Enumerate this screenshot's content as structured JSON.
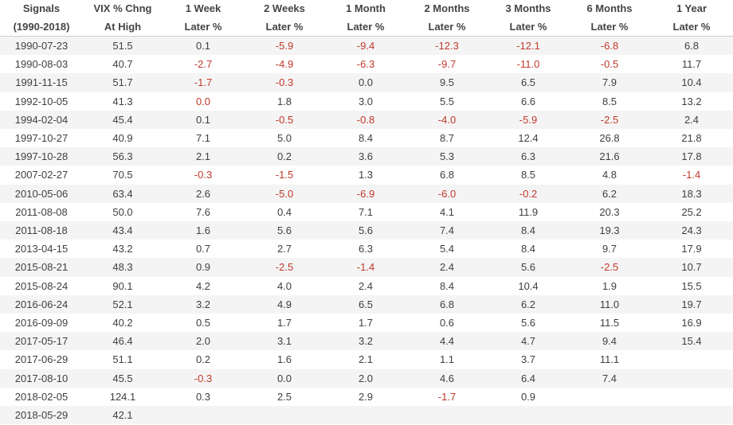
{
  "header": {
    "row1": [
      "Signals",
      "VIX % Chng",
      "1 Week",
      "2 Weeks",
      "1 Month",
      "2 Months",
      "3 Months",
      "6 Months",
      "1 Year"
    ],
    "row2": [
      "(1990-2018)",
      "At High",
      "Later %",
      "Later %",
      "Later %",
      "Later %",
      "Later %",
      "Later %",
      "Later %"
    ]
  },
  "colors": {
    "negative": "#c0392b",
    "text": "#404040",
    "stripe": "#f4f4f4"
  },
  "rows": [
    [
      "1990-07-23",
      "51.5",
      "0.1",
      "-5.9",
      "-9.4",
      "-12.3",
      "-12.1",
      "-6.8",
      "6.8"
    ],
    [
      "1990-08-03",
      "40.7",
      "-2.7",
      "-4.9",
      "-6.3",
      "-9.7",
      "-11.0",
      "-0.5",
      "11.7"
    ],
    [
      "1991-11-15",
      "51.7",
      "-1.7",
      "-0.3",
      "0.0",
      "9.5",
      "6.5",
      "7.9",
      "10.4"
    ],
    [
      "1992-10-05",
      "41.3",
      "0.0",
      "1.8",
      "3.0",
      "5.5",
      "6.6",
      "8.5",
      "13.2"
    ],
    [
      "1994-02-04",
      "45.4",
      "0.1",
      "-0.5",
      "-0.8",
      "-4.0",
      "-5.9",
      "-2.5",
      "2.4"
    ],
    [
      "1997-10-27",
      "40.9",
      "7.1",
      "5.0",
      "8.4",
      "8.7",
      "12.4",
      "26.8",
      "21.8"
    ],
    [
      "1997-10-28",
      "56.3",
      "2.1",
      "0.2",
      "3.6",
      "5.3",
      "6.3",
      "21.6",
      "17.8"
    ],
    [
      "2007-02-27",
      "70.5",
      "-0.3",
      "-1.5",
      "1.3",
      "6.8",
      "8.5",
      "4.8",
      "-1.4"
    ],
    [
      "2010-05-06",
      "63.4",
      "2.6",
      "-5.0",
      "-6.9",
      "-6.0",
      "-0.2",
      "6.2",
      "18.3"
    ],
    [
      "2011-08-08",
      "50.0",
      "7.6",
      "0.4",
      "7.1",
      "4.1",
      "11.9",
      "20.3",
      "25.2"
    ],
    [
      "2011-08-18",
      "43.4",
      "1.6",
      "5.6",
      "5.6",
      "7.4",
      "8.4",
      "19.3",
      "24.3"
    ],
    [
      "2013-04-15",
      "43.2",
      "0.7",
      "2.7",
      "6.3",
      "5.4",
      "8.4",
      "9.7",
      "17.9"
    ],
    [
      "2015-08-21",
      "48.3",
      "0.9",
      "-2.5",
      "-1.4",
      "2.4",
      "5.6",
      "-2.5",
      "10.7"
    ],
    [
      "2015-08-24",
      "90.1",
      "4.2",
      "4.0",
      "2.4",
      "8.4",
      "10.4",
      "1.9",
      "15.5"
    ],
    [
      "2016-06-24",
      "52.1",
      "3.2",
      "4.9",
      "6.5",
      "6.8",
      "6.2",
      "11.0",
      "19.7"
    ],
    [
      "2016-09-09",
      "40.2",
      "0.5",
      "1.7",
      "1.7",
      "0.6",
      "5.6",
      "11.5",
      "16.9"
    ],
    [
      "2017-05-17",
      "46.4",
      "2.0",
      "3.1",
      "3.2",
      "4.4",
      "4.7",
      "9.4",
      "15.4"
    ],
    [
      "2017-06-29",
      "51.1",
      "0.2",
      "1.6",
      "2.1",
      "1.1",
      "3.7",
      "11.1",
      ""
    ],
    [
      "2017-08-10",
      "45.5",
      "-0.3",
      "0.0",
      "2.0",
      "4.6",
      "6.4",
      "7.4",
      ""
    ],
    [
      "2018-02-05",
      "124.1",
      "0.3",
      "2.5",
      "2.9",
      "-1.7",
      "0.9",
      "",
      ""
    ],
    [
      "2018-05-29",
      "42.1",
      "",
      "",
      "",
      "",
      "",
      "",
      ""
    ]
  ],
  "negative_flags": [
    [
      0,
      0,
      0,
      1,
      1,
      1,
      1,
      1,
      0
    ],
    [
      0,
      0,
      1,
      1,
      1,
      1,
      1,
      1,
      0
    ],
    [
      0,
      0,
      1,
      1,
      0,
      0,
      0,
      0,
      0
    ],
    [
      0,
      0,
      1,
      0,
      0,
      0,
      0,
      0,
      0
    ],
    [
      0,
      0,
      0,
      1,
      1,
      1,
      1,
      1,
      0
    ],
    [
      0,
      0,
      0,
      0,
      0,
      0,
      0,
      0,
      0
    ],
    [
      0,
      0,
      0,
      0,
      0,
      0,
      0,
      0,
      0
    ],
    [
      0,
      0,
      1,
      1,
      0,
      0,
      0,
      0,
      1
    ],
    [
      0,
      0,
      0,
      1,
      1,
      1,
      1,
      0,
      0
    ],
    [
      0,
      0,
      0,
      0,
      0,
      0,
      0,
      0,
      0
    ],
    [
      0,
      0,
      0,
      0,
      0,
      0,
      0,
      0,
      0
    ],
    [
      0,
      0,
      0,
      0,
      0,
      0,
      0,
      0,
      0
    ],
    [
      0,
      0,
      0,
      1,
      1,
      0,
      0,
      1,
      0
    ],
    [
      0,
      0,
      0,
      0,
      0,
      0,
      0,
      0,
      0
    ],
    [
      0,
      0,
      0,
      0,
      0,
      0,
      0,
      0,
      0
    ],
    [
      0,
      0,
      0,
      0,
      0,
      0,
      0,
      0,
      0
    ],
    [
      0,
      0,
      0,
      0,
      0,
      0,
      0,
      0,
      0
    ],
    [
      0,
      0,
      0,
      0,
      0,
      0,
      0,
      0,
      0
    ],
    [
      0,
      0,
      1,
      0,
      0,
      0,
      0,
      0,
      0
    ],
    [
      0,
      0,
      0,
      0,
      0,
      1,
      0,
      0,
      0
    ],
    [
      0,
      0,
      0,
      0,
      0,
      0,
      0,
      0,
      0
    ]
  ]
}
